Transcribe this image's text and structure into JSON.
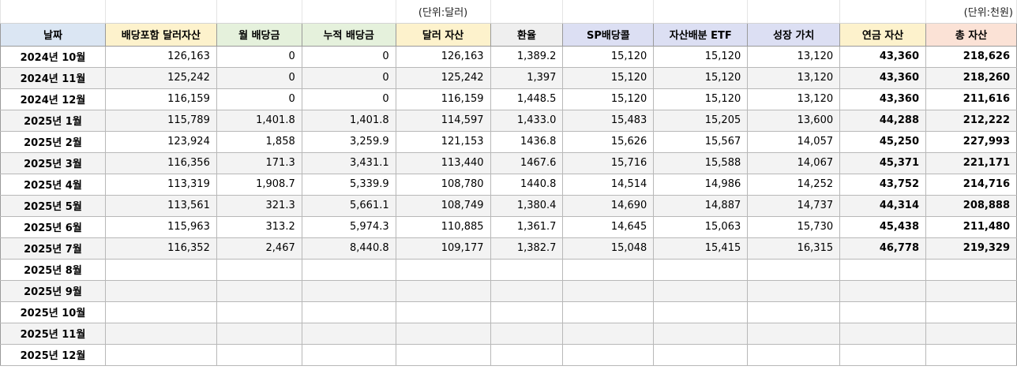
{
  "units": {
    "dollar": "(단위:달러)",
    "krw": "(단위:천원)"
  },
  "headers": [
    {
      "label": "날짜",
      "color": "#dbe6f3"
    },
    {
      "label": "배당포함 달러자산",
      "color": "#fdf2cc"
    },
    {
      "label": "월 배당금",
      "color": "#e5f1dc"
    },
    {
      "label": "누적 배당금",
      "color": "#e5f1dc"
    },
    {
      "label": "달러 자산",
      "color": "#fdf2cc"
    },
    {
      "label": "환율",
      "color": "#efefef"
    },
    {
      "label": "SP배당콜",
      "color": "#dcdff3"
    },
    {
      "label": "자산배분 ETF",
      "color": "#dcdff3"
    },
    {
      "label": "성장 가치",
      "color": "#dcdff3"
    },
    {
      "label": "연금 자산",
      "color": "#fdf2cc"
    },
    {
      "label": "총 자산",
      "color": "#fbe2d6"
    }
  ],
  "rows": [
    [
      "2024년 10월",
      "126,163",
      "0",
      "0",
      "126,163",
      "1,389.2",
      "15,120",
      "15,120",
      "13,120",
      "43,360",
      "218,626"
    ],
    [
      "2024년 11월",
      "125,242",
      "0",
      "0",
      "125,242",
      "1,397",
      "15,120",
      "15,120",
      "13,120",
      "43,360",
      "218,260"
    ],
    [
      "2024년 12월",
      "116,159",
      "0",
      "0",
      "116,159",
      "1,448.5",
      "15,120",
      "15,120",
      "13,120",
      "43,360",
      "211,616"
    ],
    [
      "2025년 1월",
      "115,789",
      "1,401.8",
      "1,401.8",
      "114,597",
      "1,433.0",
      "15,483",
      "15,205",
      "13,600",
      "44,288",
      "212,222"
    ],
    [
      "2025년 2월",
      "123,924",
      "1,858",
      "3,259.9",
      "121,153",
      "1436.8",
      "15,626",
      "15,567",
      "14,057",
      "45,250",
      "227,993"
    ],
    [
      "2025년 3월",
      "116,356",
      "171.3",
      "3,431.1",
      "113,440",
      "1467.6",
      "15,716",
      "15,588",
      "14,067",
      "45,371",
      "221,171"
    ],
    [
      "2025년 4월",
      "113,319",
      "1,908.7",
      "5,339.9",
      "108,780",
      "1440.8",
      "14,514",
      "14,986",
      "14,252",
      "43,752",
      "214,716"
    ],
    [
      "2025년 5월",
      "113,561",
      "321.3",
      "5,661.1",
      "108,749",
      "1,380.4",
      "14,690",
      "14,887",
      "14,737",
      "44,314",
      "208,888"
    ],
    [
      "2025년 6월",
      "115,963",
      "313.2",
      "5,974.3",
      "110,885",
      "1,361.7",
      "14,645",
      "15,063",
      "15,730",
      "45,438",
      "211,480"
    ],
    [
      "2025년 7월",
      "116,352",
      "2,467",
      "8,440.8",
      "109,177",
      "1,382.7",
      "15,048",
      "15,415",
      "16,315",
      "46,778",
      "219,329"
    ],
    [
      "2025년 8월",
      "",
      "",
      "",
      "",
      "",
      "",
      "",
      "",
      "",
      ""
    ],
    [
      "2025년 9월",
      "",
      "",
      "",
      "",
      "",
      "",
      "",
      "",
      "",
      ""
    ],
    [
      "2025년 10월",
      "",
      "",
      "",
      "",
      "",
      "",
      "",
      "",
      "",
      ""
    ],
    [
      "2025년 11월",
      "",
      "",
      "",
      "",
      "",
      "",
      "",
      "",
      "",
      ""
    ],
    [
      "2025년 12월",
      "",
      "",
      "",
      "",
      "",
      "",
      "",
      "",
      "",
      ""
    ]
  ]
}
